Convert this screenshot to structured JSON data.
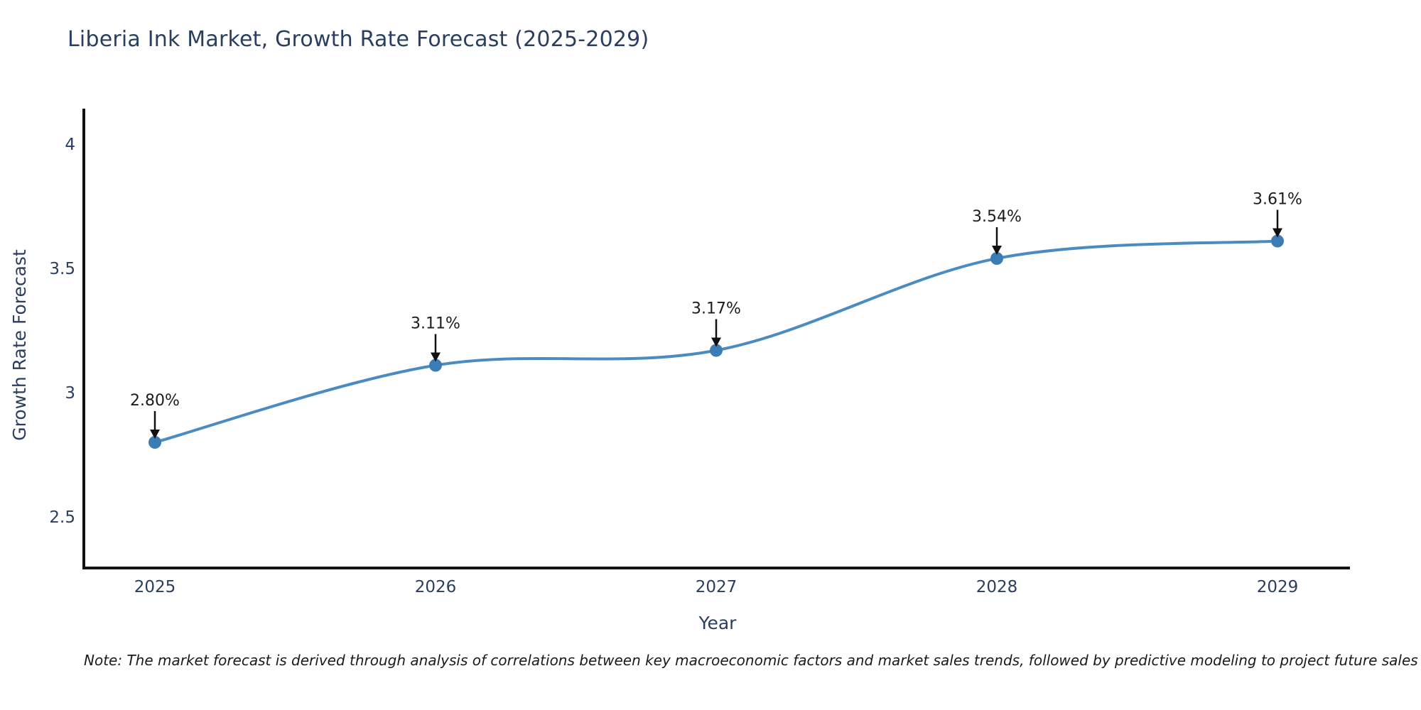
{
  "chart_data": {
    "type": "line",
    "title": "Liberia Ink Market, Growth Rate Forecast (2025-2029)",
    "xlabel": "Year",
    "ylabel": "Growth Rate Forecast",
    "x": [
      2025,
      2026,
      2027,
      2028,
      2029
    ],
    "x_tick_labels": [
      "2025",
      "2026",
      "2027",
      "2028",
      "2029"
    ],
    "values": [
      2.8,
      3.11,
      3.17,
      3.54,
      3.61
    ],
    "point_labels": [
      "2.80%",
      "3.11%",
      "3.17%",
      "3.54%",
      "3.61%"
    ],
    "y_tick_values": [
      2.5,
      3,
      3.5,
      4
    ],
    "y_tick_labels": [
      "2.5",
      "3",
      "3.5",
      "4"
    ],
    "ylim": [
      2.29,
      4.14
    ],
    "xlim": [
      2024.75,
      2029.26
    ],
    "grid": false,
    "legend": false,
    "line_shape": "spline",
    "colors": {
      "line": "#4a8bc1",
      "marker": "#3c7cb5",
      "annotation_text": "#1c1c1c",
      "annotation_arrow": "#111111",
      "axis_line": "#111111",
      "title_text": "#2a3f5f"
    }
  },
  "footnote": {
    "text": "Note: The market forecast is derived through analysis of correlations between key macroeconomic factors and market sales trends, followed by predictive modeling to project future sales"
  }
}
